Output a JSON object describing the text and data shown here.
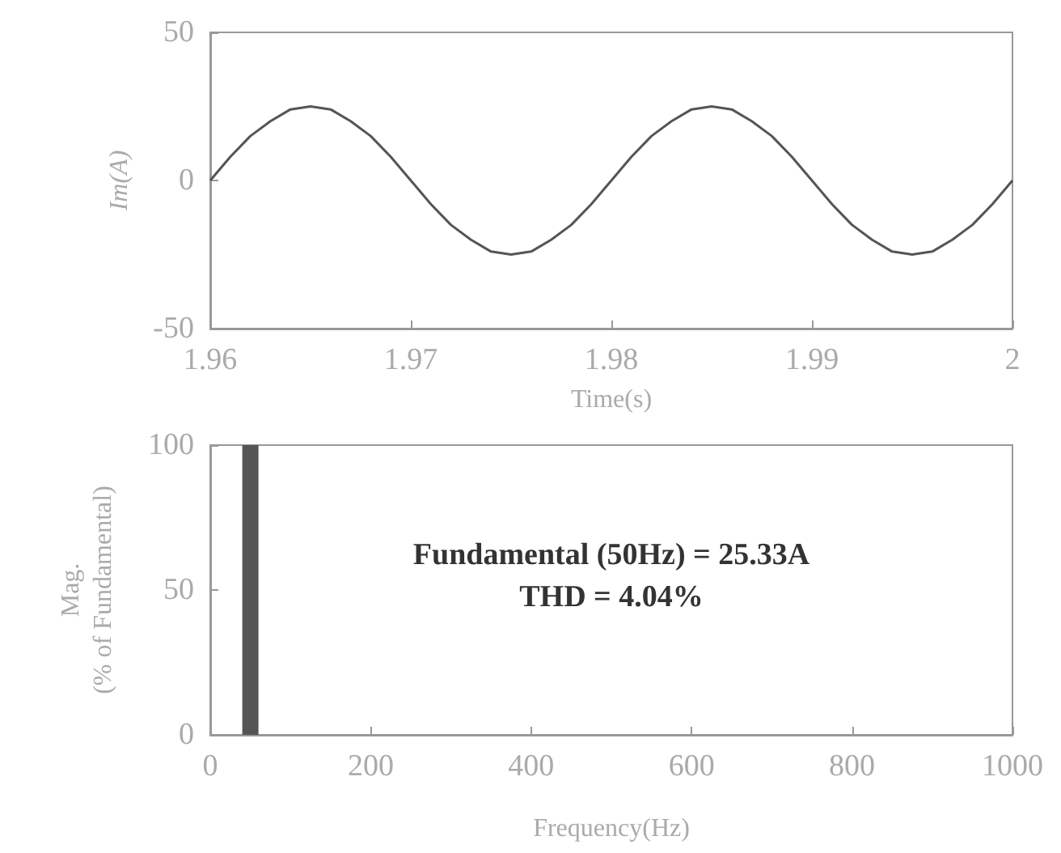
{
  "chart_data": [
    {
      "type": "line",
      "xlabel": "Time(s)",
      "ylabel": "Im(A)",
      "x": [
        1.96,
        1.961,
        1.962,
        1.963,
        1.964,
        1.965,
        1.966,
        1.967,
        1.968,
        1.969,
        1.97,
        1.971,
        1.972,
        1.973,
        1.974,
        1.975,
        1.976,
        1.977,
        1.978,
        1.979,
        1.98,
        1.981,
        1.982,
        1.983,
        1.984,
        1.985,
        1.986,
        1.987,
        1.988,
        1.989,
        1.99,
        1.991,
        1.992,
        1.993,
        1.994,
        1.995,
        1.996,
        1.997,
        1.998,
        1.999,
        2
      ],
      "series": [
        {
          "color": "#555555",
          "values": [
            0,
            8,
            15,
            20,
            24,
            25,
            24,
            20,
            15,
            8,
            0,
            -8,
            -15,
            -20,
            -24,
            -25,
            -24,
            -20,
            -15,
            -8,
            0,
            8,
            15,
            20,
            24,
            25,
            24,
            20,
            15,
            8,
            0,
            -8,
            -15,
            -20,
            -24,
            -25,
            -24,
            -20,
            -15,
            -8,
            0
          ]
        }
      ],
      "xlim": [
        1.96,
        2
      ],
      "xticks": [
        1.96,
        1.97,
        1.98,
        1.99,
        2
      ],
      "ylim": [
        -50,
        50
      ],
      "yticks": [
        -50,
        0,
        50
      ],
      "grid": false
    },
    {
      "type": "bar",
      "xlabel": "Frequency(Hz)",
      "ylabel": "Mag.\n(% of Fundamental)",
      "x": [
        50
      ],
      "series": [
        {
          "color": "#555555",
          "values": [
            100
          ]
        }
      ],
      "xlim": [
        0,
        1000
      ],
      "xticks": [
        0,
        200,
        400,
        600,
        800,
        1000
      ],
      "ylim": [
        0,
        100
      ],
      "yticks": [
        0,
        50,
        100
      ],
      "grid": false,
      "annotations": [
        "Fundamental (50Hz) = 25.33A",
        "THD = 4.04%"
      ]
    }
  ]
}
